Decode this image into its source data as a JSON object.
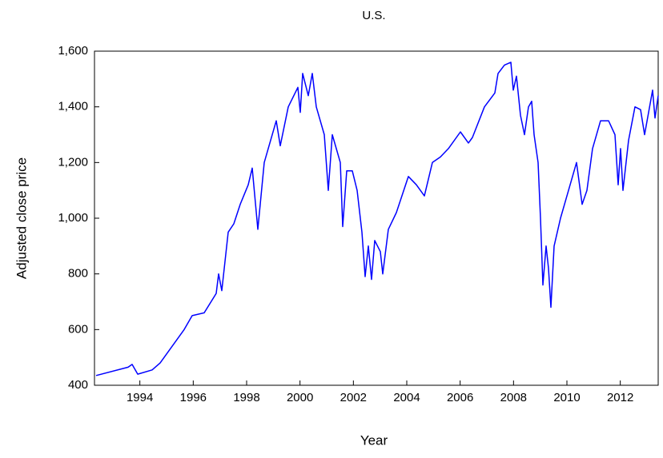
{
  "chart_data": {
    "type": "line",
    "title": "U.S.",
    "x_label": "Year",
    "y_label": "Adjusted close price",
    "series": [
      {
        "name": "U.S.",
        "color": "#0000ff",
        "x": [
          1992.36,
          1993.56,
          1993.71,
          1993.92,
          1994.46,
          1994.76,
          1995.66,
          1995.96,
          1996.41,
          1996.86,
          1996.95,
          1997.07,
          1997.31,
          1997.52,
          1997.76,
          1998.06,
          1998.21,
          1998.42,
          1998.66,
          1999.11,
          1999.26,
          1999.56,
          1999.92,
          2000.01,
          2000.1,
          2000.31,
          2000.46,
          2000.61,
          2000.91,
          2001.06,
          2001.21,
          2001.51,
          2001.6,
          2001.75,
          2001.96,
          2002.14,
          2002.32,
          2002.44,
          2002.56,
          2002.68,
          2002.8,
          2003.01,
          2003.1,
          2003.31,
          2003.61,
          2004.06,
          2004.36,
          2004.66,
          2004.96,
          2005.26,
          2005.56,
          2006.01,
          2006.31,
          2006.46,
          2006.91,
          2007.3,
          2007.42,
          2007.66,
          2007.9,
          2007.99,
          2008.11,
          2008.26,
          2008.41,
          2008.56,
          2008.68,
          2008.77,
          2008.92,
          2009.01,
          2009.1,
          2009.22,
          2009.31,
          2009.4,
          2009.52,
          2009.76,
          2010.06,
          2010.36,
          2010.57,
          2010.75,
          2010.96,
          2011.26,
          2011.56,
          2011.8,
          2011.92,
          2012.01,
          2012.1,
          2012.31,
          2012.55,
          2012.76,
          2012.91,
          2013.21,
          2013.3,
          2013.42
        ],
        "values": [
          435,
          465,
          475,
          440,
          455,
          480,
          600,
          650,
          660,
          730,
          800,
          740,
          950,
          980,
          1050,
          1120,
          1180,
          960,
          1200,
          1350,
          1260,
          1400,
          1470,
          1380,
          1520,
          1440,
          1520,
          1400,
          1300,
          1100,
          1300,
          1200,
          970,
          1170,
          1170,
          1100,
          950,
          790,
          900,
          780,
          920,
          880,
          800,
          960,
          1020,
          1150,
          1120,
          1080,
          1200,
          1220,
          1250,
          1310,
          1270,
          1290,
          1400,
          1450,
          1520,
          1550,
          1560,
          1460,
          1510,
          1370,
          1300,
          1400,
          1420,
          1300,
          1200,
          1000,
          760,
          900,
          820,
          680,
          900,
          1000,
          1100,
          1200,
          1050,
          1100,
          1250,
          1350,
          1350,
          1300,
          1120,
          1250,
          1100,
          1280,
          1400,
          1390,
          1300,
          1460,
          1360,
          1440
        ]
      }
    ],
    "xlim": [
      1992.3,
      2013.42
    ],
    "xticks": [
      1994,
      1996,
      1998,
      2000,
      2002,
      2004,
      2006,
      2008,
      2010,
      2012
    ],
    "ylim": [
      400,
      1600
    ],
    "yticks": [
      {
        "value": 400,
        "label": "400"
      },
      {
        "value": 600,
        "label": "600"
      },
      {
        "value": 800,
        "label": "800"
      },
      {
        "value": 1000,
        "label": "1,000"
      },
      {
        "value": 1200,
        "label": "1,200"
      },
      {
        "value": 1400,
        "label": "1,400"
      },
      {
        "value": 1600,
        "label": "1,600"
      }
    ],
    "grid": false
  }
}
